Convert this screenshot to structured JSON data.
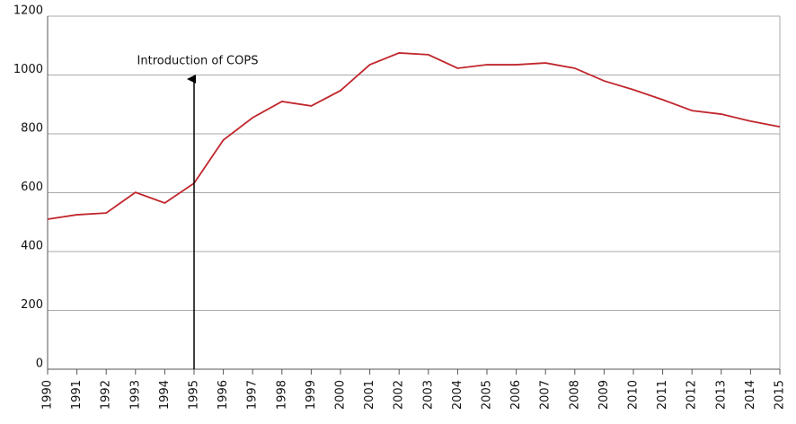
{
  "chart_data": {
    "type": "line",
    "annotation": "Introduction of COPS",
    "categories": [
      "1990",
      "1991",
      "1992",
      "1993",
      "1994",
      "1995",
      "1996",
      "1997",
      "1998",
      "1999",
      "2000",
      "2001",
      "2002",
      "2003",
      "2004",
      "2005",
      "2006",
      "2007",
      "2008",
      "2009",
      "2010",
      "2011",
      "2012",
      "2013",
      "2014",
      "2015"
    ],
    "series": [
      {
        "color": "#c0272d",
        "values": [
          510,
          525,
          531,
          601,
          565,
          632,
          779,
          855,
          910,
          895,
          947,
          1035,
          1075,
          1069,
          1023,
          1035,
          1035,
          1041,
          1023,
          980,
          950,
          916,
          879,
          867,
          843,
          824
        ]
      }
    ],
    "ylim": [
      0,
      1200
    ],
    "yticks": [
      0,
      200,
      400,
      600,
      800,
      1000,
      1200
    ],
    "grid": true
  }
}
